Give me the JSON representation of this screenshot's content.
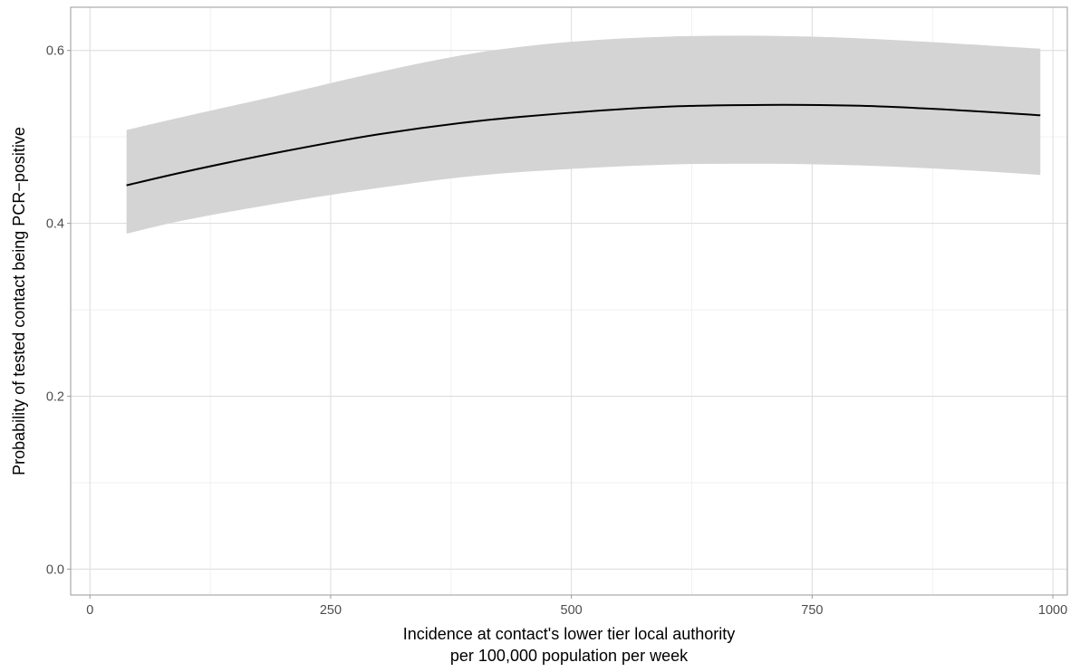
{
  "chart_data": {
    "type": "line",
    "title": "",
    "xlabel_lines": [
      "Incidence at contact's lower tier local authority",
      "per 100,000 population per week"
    ],
    "ylabel": "Probability of tested contact being PCR−positive",
    "xlim": [
      -20,
      1015
    ],
    "ylim": [
      -0.03,
      0.65
    ],
    "x_ticks": [
      0,
      250,
      500,
      750,
      1000
    ],
    "x_tick_labels": [
      "0",
      "250",
      "500",
      "750",
      "1000"
    ],
    "x_minor_ticks": [
      125,
      375,
      625,
      875
    ],
    "y_ticks": [
      0.0,
      0.2,
      0.4,
      0.6
    ],
    "y_tick_labels": [
      "0.0",
      "0.2",
      "0.4",
      "0.6"
    ],
    "y_minor_ticks": [
      0.1,
      0.3,
      0.5
    ],
    "grid": true,
    "series": [
      {
        "x": [
          38,
          100,
          200,
          300,
          400,
          500,
          600,
          700,
          800,
          900,
          987
        ],
        "y": [
          0.444,
          0.46,
          0.483,
          0.503,
          0.518,
          0.528,
          0.535,
          0.537,
          0.536,
          0.531,
          0.525
        ],
        "lower": [
          0.388,
          0.404,
          0.424,
          0.441,
          0.455,
          0.463,
          0.468,
          0.469,
          0.467,
          0.462,
          0.456
        ],
        "upper": [
          0.508,
          0.524,
          0.549,
          0.575,
          0.597,
          0.61,
          0.616,
          0.617,
          0.614,
          0.608,
          0.602
        ]
      }
    ]
  }
}
